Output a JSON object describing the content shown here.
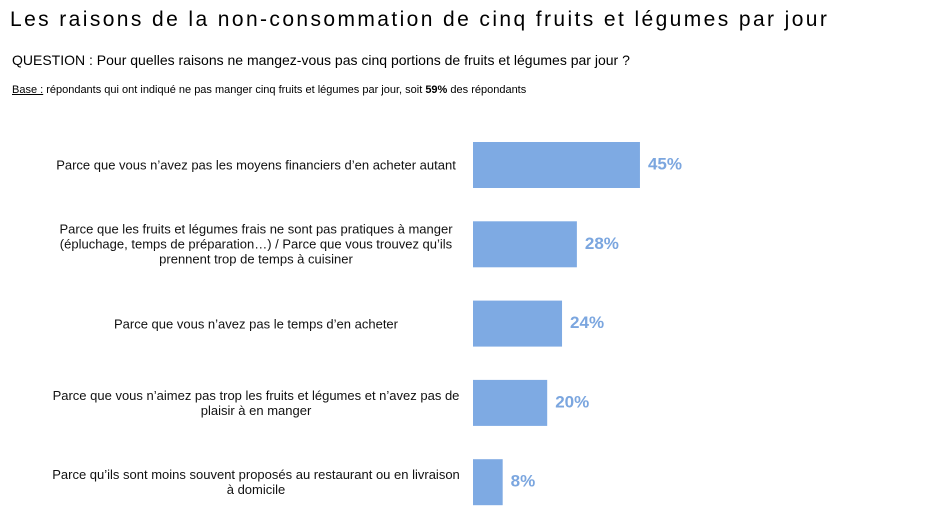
{
  "chart_data": {
    "type": "barh",
    "title": "Les raisons de la non-consommation de cinq fruits et légumes par jour",
    "subtitle": "QUESTION : Pour quelles raisons ne mangez-vous pas cinq portions de fruits et légumes par jour ?",
    "note": {
      "label": "Base :",
      "text": "répondants qui ont indiqué ne pas manger cinq fruits et légumes par jour, soit",
      "highlight": "59%",
      "end": "des répondants"
    },
    "categories": [
      "Parce que vous n’avez pas les moyens financiers d’en acheter autant",
      "Parce que les fruits et légumes frais ne sont pas pratiques à manger (épluchage, temps de préparation…) / Parce que vous trouvez qu’ils prennent trop de temps à cuisiner",
      "Parce que vous n’avez pas le temps d’en acheter",
      "Parce que vous n’aimez pas trop les fruits et légumes et n’avez pas de plaisir à en manger",
      "Parce qu’ils sont moins souvent proposés au restaurant ou en livraison à domicile"
    ],
    "values": [
      45,
      28,
      24,
      20,
      8
    ],
    "value_labels": [
      "45%",
      "28%",
      "24%",
      "20%",
      "8%"
    ],
    "color": "#7eaae3",
    "label_color": "#7ba6df"
  }
}
